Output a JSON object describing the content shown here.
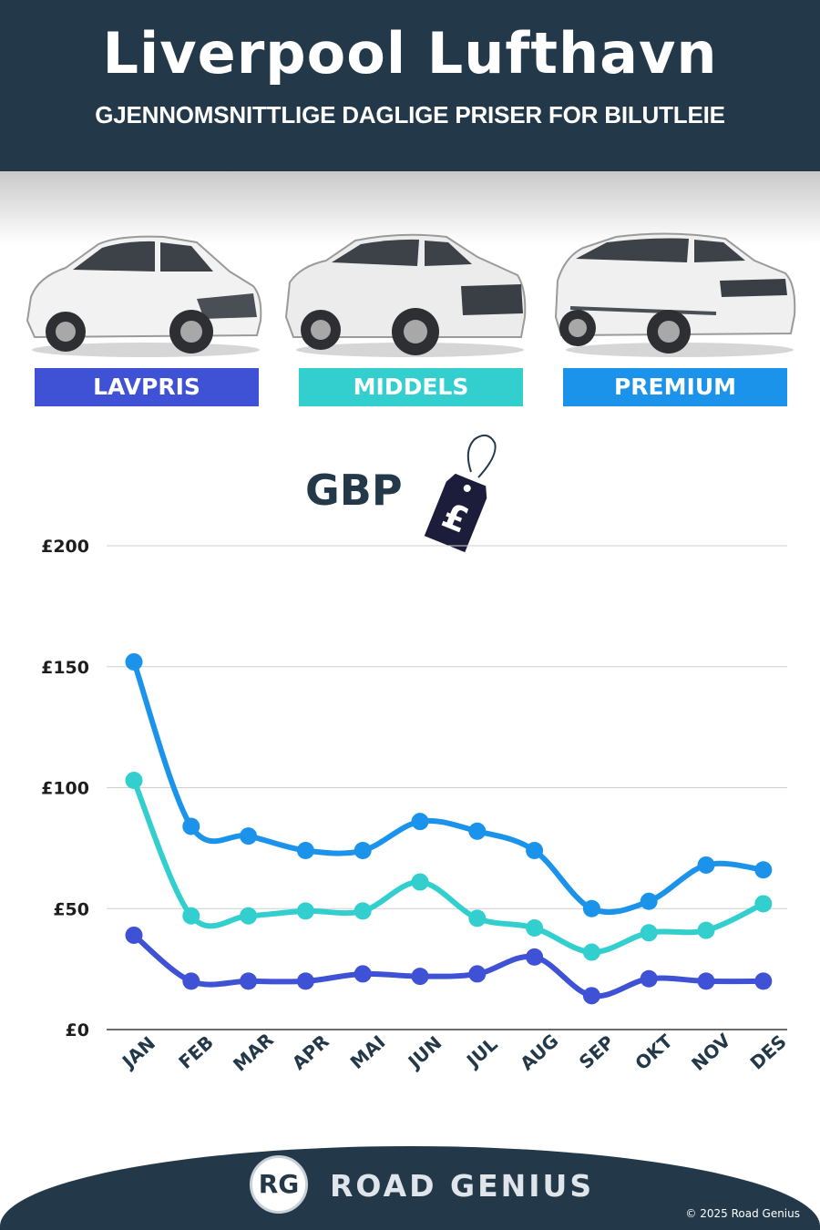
{
  "header": {
    "title": "Liverpool Lufthavn",
    "subtitle": "GJENNOMSNITTLIGE DAGLIGE PRISER FOR BILUTLEIE"
  },
  "categories": [
    {
      "label": "LAVPRIS",
      "color": "#3f51d4"
    },
    {
      "label": "MIDDELS",
      "color": "#33cfcf"
    },
    {
      "label": "PREMIUM",
      "color": "#1b93ea"
    }
  ],
  "currency_label": "GBP",
  "price_tag_symbol": "£",
  "chart_data": {
    "type": "line",
    "categories": [
      "JAN",
      "FEB",
      "MAR",
      "APR",
      "MAI",
      "JUN",
      "JUL",
      "AUG",
      "SEP",
      "OKT",
      "NOV",
      "DES"
    ],
    "series": [
      {
        "name": "PREMIUM",
        "color": "#1b93ea",
        "values": [
          152,
          84,
          80,
          74,
          74,
          86,
          82,
          74,
          50,
          53,
          68,
          66
        ]
      },
      {
        "name": "MIDDELS",
        "color": "#33cfcf",
        "values": [
          103,
          47,
          47,
          49,
          49,
          61,
          46,
          42,
          32,
          40,
          41,
          52
        ]
      },
      {
        "name": "LAVPRIS",
        "color": "#3f51d4",
        "values": [
          39,
          20,
          20,
          20,
          23,
          22,
          23,
          30,
          14,
          21,
          20,
          20
        ]
      }
    ],
    "yticks": [
      0,
      50,
      100,
      150,
      200
    ],
    "ytick_labels": [
      "£0",
      "£50",
      "£100",
      "£150",
      "£200"
    ],
    "ylim": [
      0,
      200
    ],
    "grid": true,
    "legend": "top"
  },
  "footer": {
    "logo_mark": "RG",
    "brand": "ROAD GENIUS",
    "copyright": "© 2025 Road Genius"
  }
}
